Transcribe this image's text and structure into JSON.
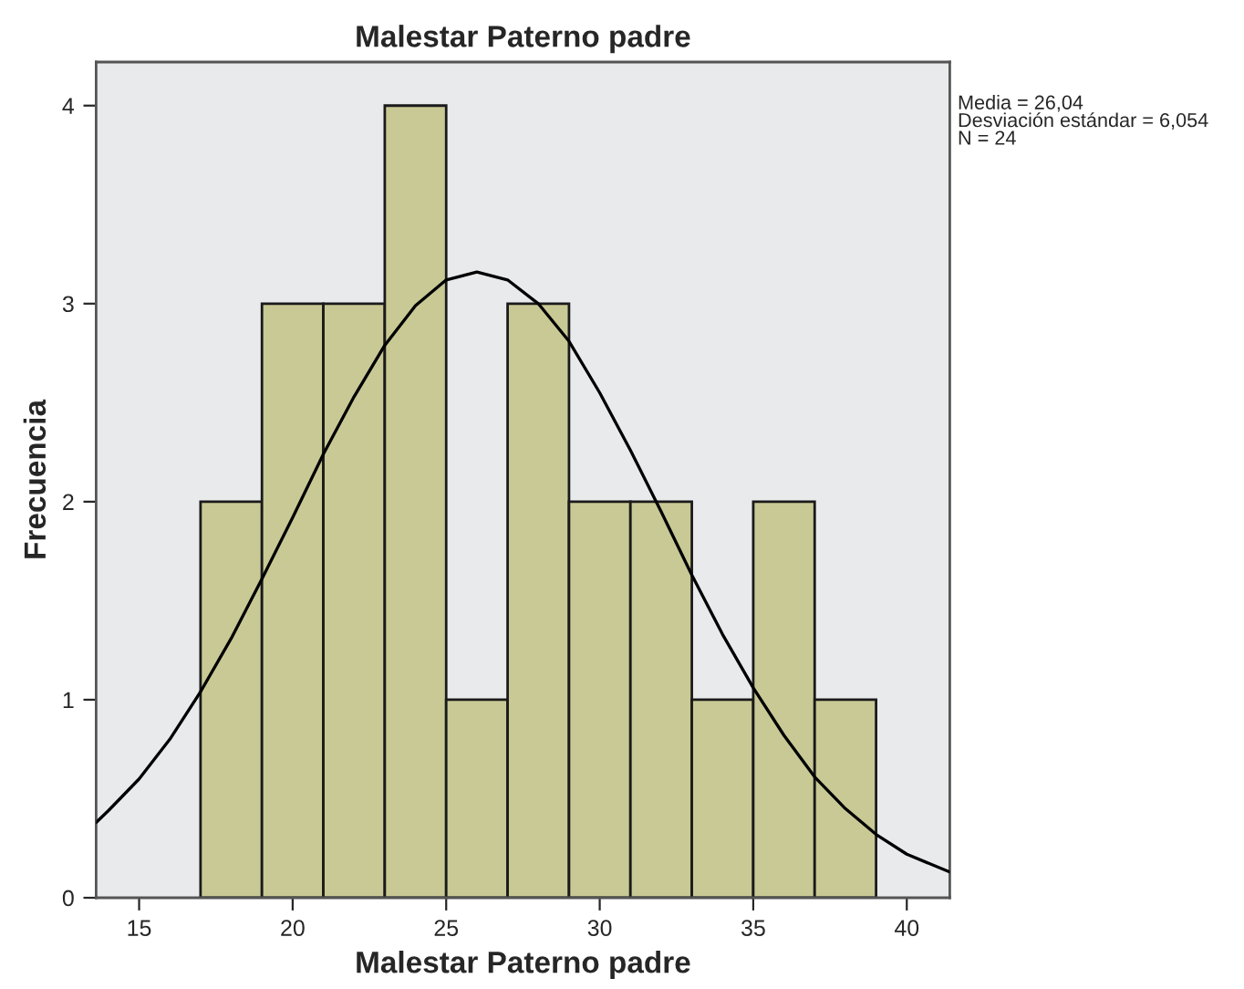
{
  "chart_data": {
    "type": "histogram",
    "title": "Malestar Paterno padre",
    "xlabel": "Malestar Paterno padre",
    "ylabel": "Frecuencia",
    "series": [
      {
        "color": "#c8c995",
        "bins": [
          17,
          19,
          21,
          23,
          25,
          27,
          29,
          31,
          33,
          35,
          37,
          39
        ],
        "values": [
          2,
          3,
          3,
          4,
          1,
          3,
          2,
          2,
          1,
          2,
          1
        ]
      },
      {
        "type": "line",
        "color": "#000000",
        "x": [
          13.6,
          14,
          15,
          16,
          17,
          18,
          19,
          20,
          21,
          22,
          23,
          24,
          25,
          26,
          27,
          28,
          29,
          30,
          31,
          32,
          33,
          34,
          35,
          36,
          37,
          38,
          39,
          40,
          41.4
        ],
        "values": [
          0.38,
          0.44,
          0.6,
          0.8,
          1.04,
          1.31,
          1.61,
          1.92,
          2.24,
          2.53,
          2.79,
          2.99,
          3.12,
          3.16,
          3.12,
          3.0,
          2.81,
          2.55,
          2.26,
          1.95,
          1.63,
          1.33,
          1.06,
          0.82,
          0.61,
          0.45,
          0.32,
          0.22,
          0.13
        ]
      }
    ],
    "xlim": [
      13.6,
      41.4
    ],
    "ylim": [
      0,
      4.22
    ],
    "xticks": [
      15,
      20,
      25,
      30,
      35,
      40
    ],
    "yticks": [
      0,
      1,
      2,
      3,
      4
    ],
    "grid": false,
    "annotations": [
      "Media = 26,04\nDesviación estándar = 6,054\nN = 24"
    ]
  }
}
